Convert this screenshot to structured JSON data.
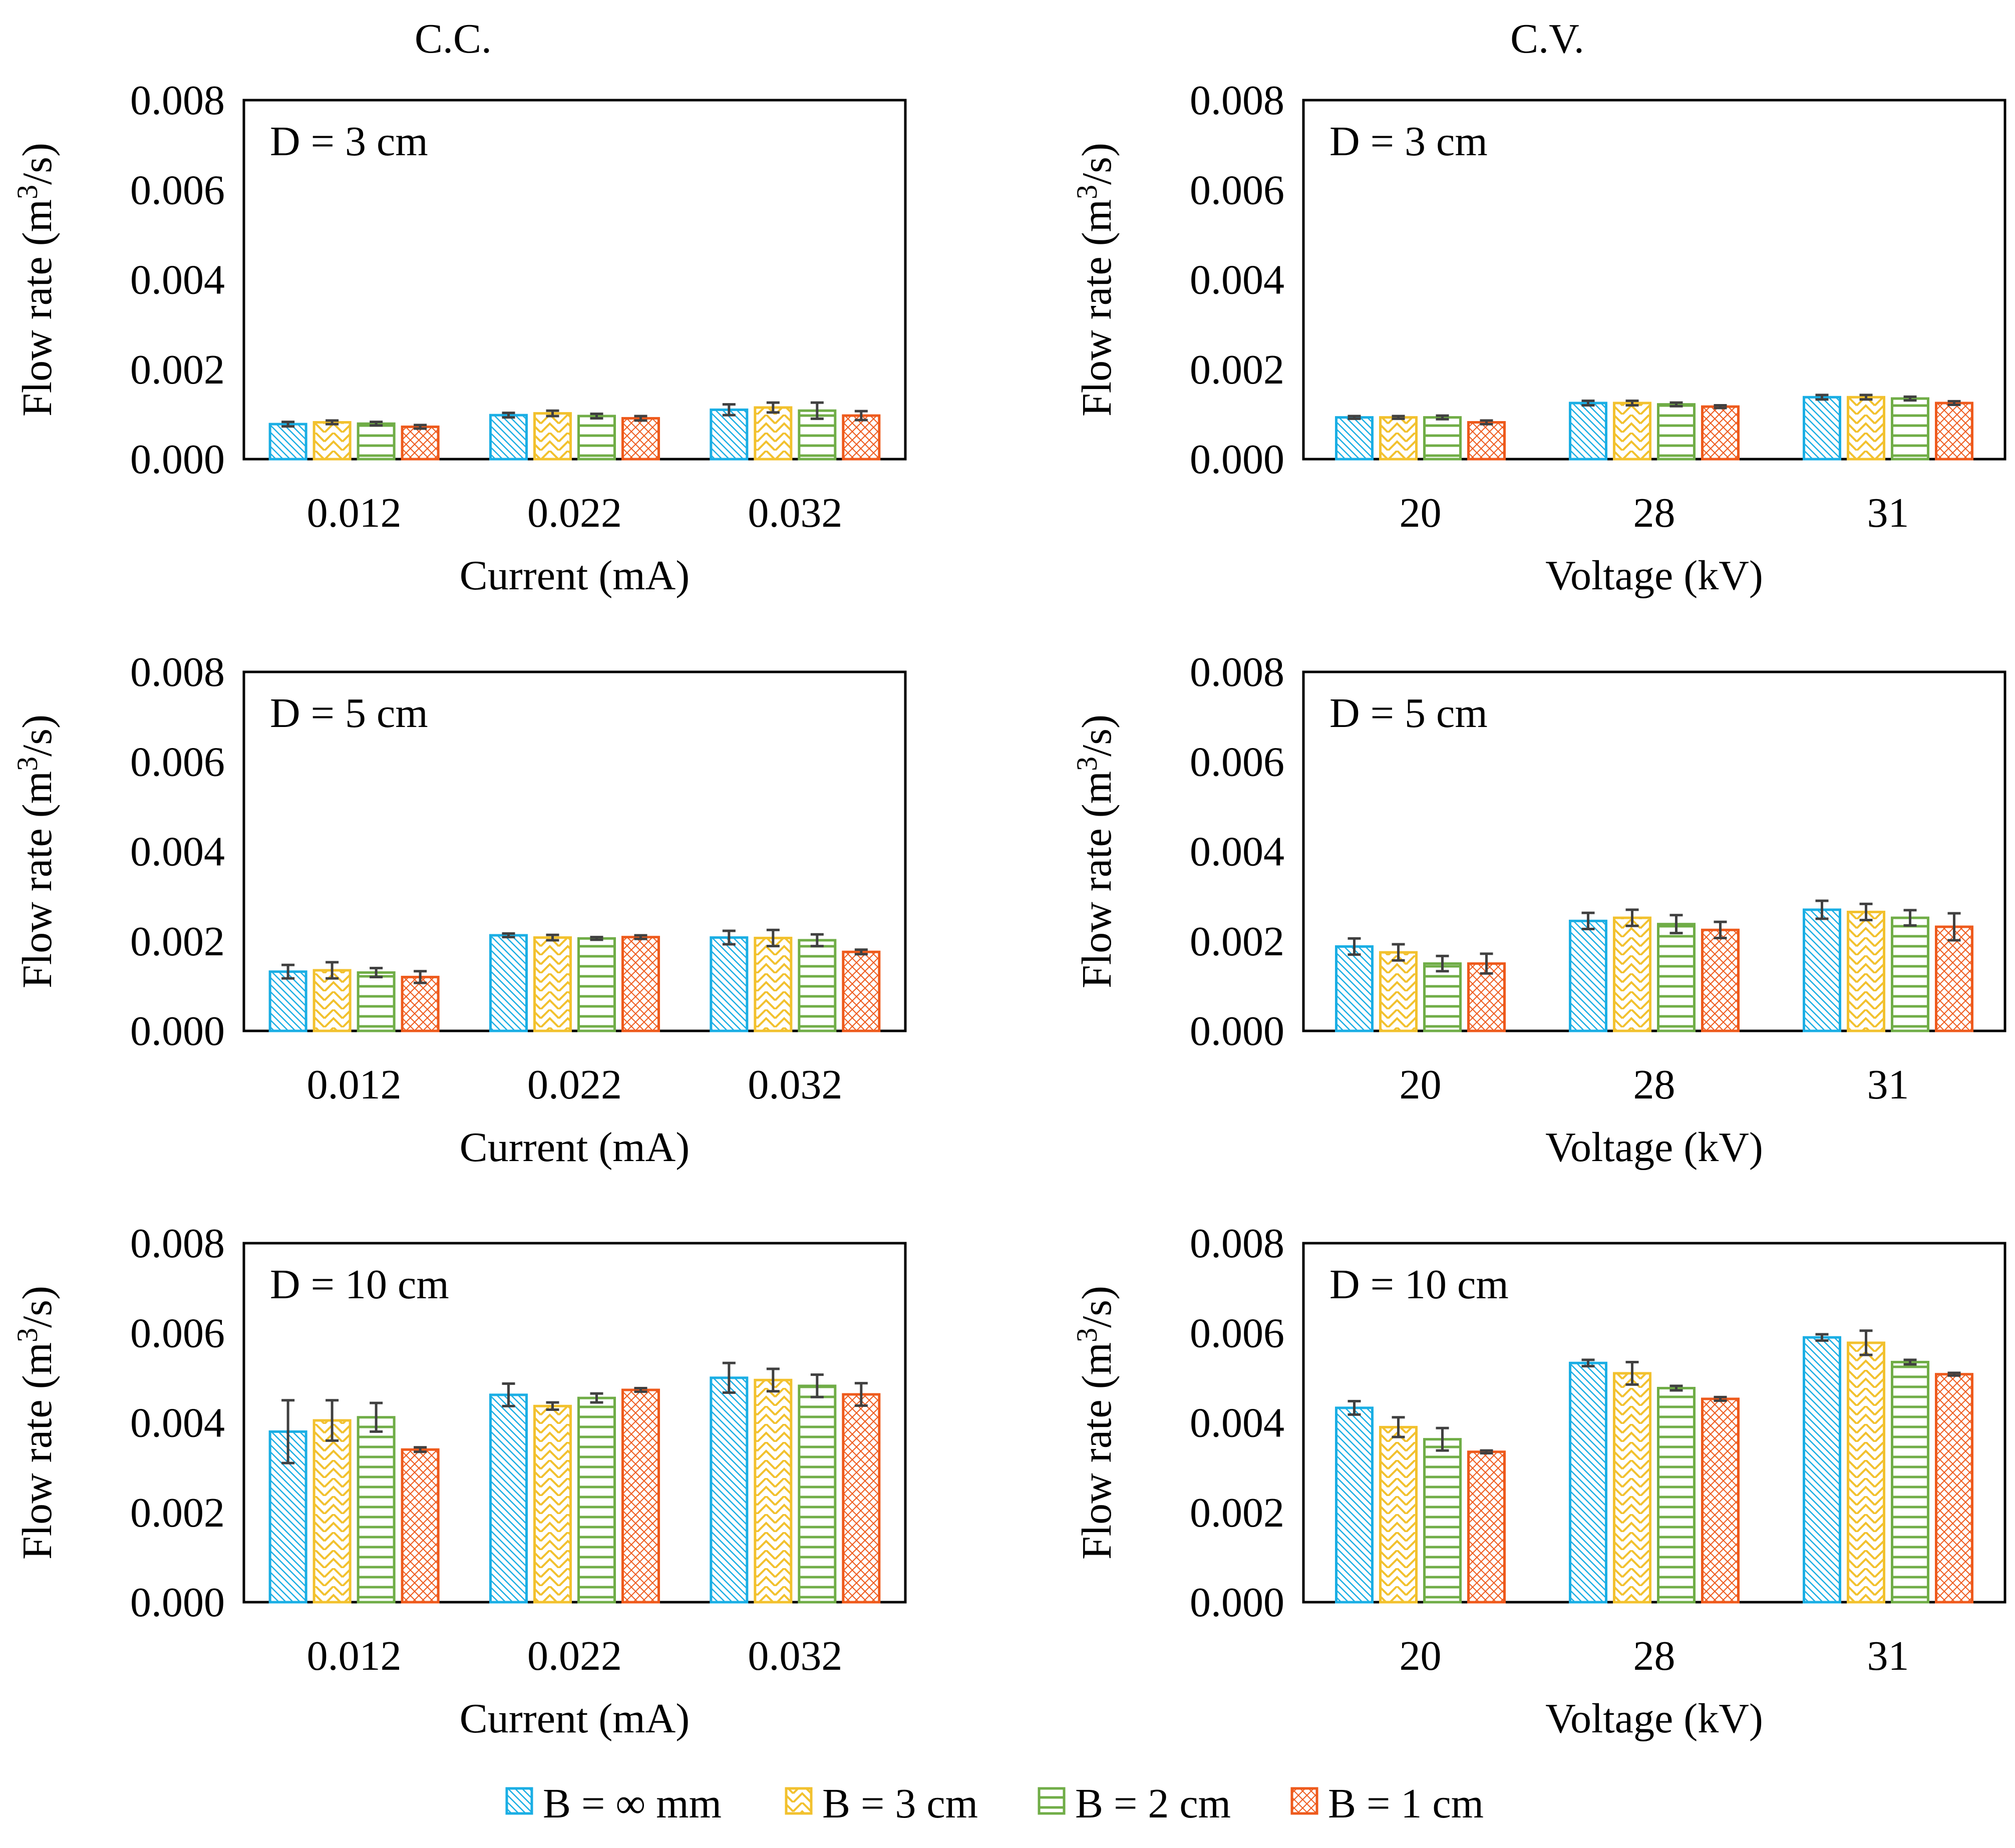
{
  "figure": {
    "column_titles": [
      "C.C.",
      "C.V."
    ]
  },
  "legend": [
    {
      "label": "B = ∞ mm",
      "color": "#1aaee4",
      "pattern": "diag-dense"
    },
    {
      "label": "B = 3 cm",
      "color": "#f2c12e",
      "pattern": "zigzag"
    },
    {
      "label": "B = 2 cm",
      "color": "#70ad47",
      "pattern": "horizontal"
    },
    {
      "label": "B = 1 cm",
      "color": "#ee5a1c",
      "pattern": "diag-cross"
    }
  ],
  "chart_data": [
    {
      "type": "bar",
      "panel": "C.C. D = 3 cm",
      "label": "D = 3 cm",
      "xlabel": "Current (mA)",
      "ylabel": "Flow rate (m³/s)",
      "ylim": [
        0,
        0.008
      ],
      "yticks": [
        "0.000",
        "0.002",
        "0.004",
        "0.006",
        "0.008"
      ],
      "categories": [
        "0.012",
        "0.022",
        "0.032"
      ],
      "series": [
        {
          "name": "B = ∞ mm",
          "values": [
            0.00078,
            0.00098,
            0.0011
          ],
          "errors": [
            5e-05,
            5e-05,
            0.00012
          ]
        },
        {
          "name": "B = 3 cm",
          "values": [
            0.00082,
            0.00102,
            0.00115
          ],
          "errors": [
            4e-05,
            6e-05,
            0.00011
          ]
        },
        {
          "name": "B = 2 cm",
          "values": [
            0.00079,
            0.00096,
            0.00108
          ],
          "errors": [
            4e-05,
            5e-05,
            0.00018
          ]
        },
        {
          "name": "B = 1 cm",
          "values": [
            0.00072,
            0.00091,
            0.00097
          ],
          "errors": [
            4e-05,
            5e-05,
            0.0001
          ]
        }
      ]
    },
    {
      "type": "bar",
      "panel": "C.V. D = 3 cm",
      "label": "D = 3 cm",
      "xlabel": "Voltage (kV)",
      "ylabel": "Flow rate (m³/s)",
      "ylim": [
        0,
        0.008
      ],
      "yticks": [
        "0.000",
        "0.002",
        "0.004",
        "0.006",
        "0.008"
      ],
      "categories": [
        "20",
        "28",
        "31"
      ],
      "series": [
        {
          "name": "B = ∞ mm",
          "values": [
            0.00093,
            0.00125,
            0.00138
          ],
          "errors": [
            3e-05,
            5e-05,
            5e-05
          ]
        },
        {
          "name": "B = 3 cm",
          "values": [
            0.00093,
            0.00125,
            0.00138
          ],
          "errors": [
            3e-05,
            5e-05,
            5e-05
          ]
        },
        {
          "name": "B = 2 cm",
          "values": [
            0.00093,
            0.00122,
            0.00135
          ],
          "errors": [
            4e-05,
            4e-05,
            4e-05
          ]
        },
        {
          "name": "B = 1 cm",
          "values": [
            0.00082,
            0.00117,
            0.00125
          ],
          "errors": [
            4e-05,
            3e-05,
            4e-05
          ]
        }
      ]
    },
    {
      "type": "bar",
      "panel": "C.C. D = 5 cm",
      "label": "D = 5 cm",
      "xlabel": "Current (mA)",
      "ylabel": "Flow rate (m³/s)",
      "ylim": [
        0,
        0.008
      ],
      "yticks": [
        "0.000",
        "0.002",
        "0.004",
        "0.006",
        "0.008"
      ],
      "categories": [
        "0.012",
        "0.022",
        "0.032"
      ],
      "series": [
        {
          "name": "B = ∞ mm",
          "values": [
            0.00132,
            0.00213,
            0.00208
          ],
          "errors": [
            0.00015,
            4e-05,
            0.00015
          ]
        },
        {
          "name": "B = 3 cm",
          "values": [
            0.00135,
            0.00208,
            0.00207
          ],
          "errors": [
            0.00018,
            6e-05,
            0.00018
          ]
        },
        {
          "name": "B = 2 cm",
          "values": [
            0.0013,
            0.00206,
            0.00202
          ],
          "errors": [
            0.0001,
            3e-05,
            0.00013
          ]
        },
        {
          "name": "B = 1 cm",
          "values": [
            0.0012,
            0.00209,
            0.00176
          ],
          "errors": [
            0.00013,
            4e-05,
            5e-05
          ]
        }
      ]
    },
    {
      "type": "bar",
      "panel": "C.V. D = 5 cm",
      "label": "D = 5 cm",
      "xlabel": "Voltage (kV)",
      "ylabel": "Flow rate (m³/s)",
      "ylim": [
        0,
        0.008
      ],
      "yticks": [
        "0.000",
        "0.002",
        "0.004",
        "0.006",
        "0.008"
      ],
      "categories": [
        "20",
        "28",
        "31"
      ],
      "series": [
        {
          "name": "B = ∞ mm",
          "values": [
            0.00188,
            0.00245,
            0.0027
          ],
          "errors": [
            0.00018,
            0.00018,
            0.0002
          ]
        },
        {
          "name": "B = 3 cm",
          "values": [
            0.00175,
            0.00252,
            0.00265
          ],
          "errors": [
            0.00018,
            0.00018,
            0.00018
          ]
        },
        {
          "name": "B = 2 cm",
          "values": [
            0.0015,
            0.00238,
            0.00252
          ],
          "errors": [
            0.00017,
            0.0002,
            0.00017
          ]
        },
        {
          "name": "B = 1 cm",
          "values": [
            0.0015,
            0.00225,
            0.00232
          ],
          "errors": [
            0.00022,
            0.00018,
            0.0003
          ]
        }
      ]
    },
    {
      "type": "bar",
      "panel": "C.C. D = 10 cm",
      "label": "D = 10 cm",
      "xlabel": "Current (mA)",
      "ylabel": "Flow rate (m³/s)",
      "ylim": [
        0,
        0.008
      ],
      "yticks": [
        "0.000",
        "0.002",
        "0.004",
        "0.006",
        "0.008"
      ],
      "categories": [
        "0.012",
        "0.022",
        "0.032"
      ],
      "series": [
        {
          "name": "B = ∞ mm",
          "values": [
            0.0038,
            0.00462,
            0.005
          ],
          "errors": [
            0.0007,
            0.00025,
            0.00033
          ]
        },
        {
          "name": "B = 3 cm",
          "values": [
            0.00405,
            0.00437,
            0.00495
          ],
          "errors": [
            0.00045,
            8e-05,
            0.00025
          ]
        },
        {
          "name": "B = 2 cm",
          "values": [
            0.00412,
            0.00455,
            0.00482
          ],
          "errors": [
            0.00032,
            0.0001,
            0.00025
          ]
        },
        {
          "name": "B = 1 cm",
          "values": [
            0.0034,
            0.00473,
            0.00463
          ],
          "errors": [
            5e-05,
            4e-05,
            0.00025
          ]
        }
      ]
    },
    {
      "type": "bar",
      "panel": "C.V. D = 10 cm",
      "label": "D = 10 cm",
      "xlabel": "Voltage (kV)",
      "ylabel": "Flow rate (m³/s)",
      "ylim": [
        0,
        0.008
      ],
      "yticks": [
        "0.000",
        "0.002",
        "0.004",
        "0.006",
        "0.008"
      ],
      "categories": [
        "20",
        "28",
        "31"
      ],
      "series": [
        {
          "name": "B = ∞ mm",
          "values": [
            0.00433,
            0.00533,
            0.0059
          ],
          "errors": [
            0.00015,
            7e-05,
            7e-05
          ]
        },
        {
          "name": "B = 3 cm",
          "values": [
            0.0039,
            0.0051,
            0.00578
          ],
          "errors": [
            0.00022,
            0.00025,
            0.00027
          ]
        },
        {
          "name": "B = 2 cm",
          "values": [
            0.00363,
            0.00477,
            0.00535
          ],
          "errors": [
            0.00025,
            5e-05,
            5e-05
          ]
        },
        {
          "name": "B = 1 cm",
          "values": [
            0.00335,
            0.00453,
            0.00508
          ],
          "errors": [
            3e-05,
            4e-05,
            3e-05
          ]
        }
      ]
    }
  ]
}
